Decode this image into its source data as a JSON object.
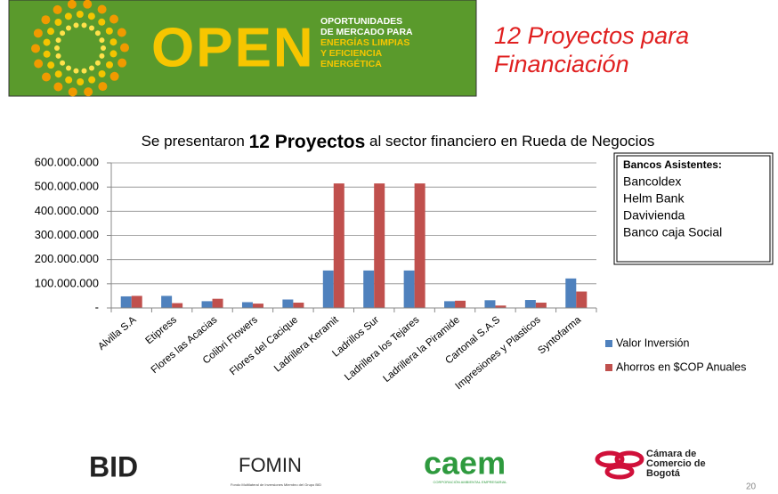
{
  "header": {
    "logo": "OPEN",
    "logo_lines": [
      "OPORTUNIDADES",
      "DE MERCADO PARA",
      "ENERGÍAS LIMPIAS",
      "Y EFICIENCIA",
      "ENERGÉTICA"
    ],
    "title_lines": [
      "12 Proyectos para",
      "Financiación"
    ],
    "subtitle_parts": [
      "Se presentaron ",
      "12 Proyectos",
      " al sector financiero en Rueda de Negocios"
    ]
  },
  "chart_data": {
    "type": "bar",
    "categories": [
      "Alvilla S.A",
      "Etipress",
      "Flores las Acacias",
      "Colibri Flowers",
      "Flores del Cacique",
      "Ladrillera Keramit",
      "Ladrillos Sur",
      "Ladrillera los Tejares",
      "Ladrillera la Piramide",
      "Cartonal S.A.S",
      "Impresiones y Plasticos",
      "Syntofarma"
    ],
    "series": [
      {
        "name": "Valor Inversión",
        "color": "#4f81bd",
        "values": [
          48000000,
          50000000,
          28000000,
          24000000,
          35000000,
          155000000,
          155000000,
          155000000,
          28000000,
          32000000,
          33000000,
          122000000
        ]
      },
      {
        "name": "Ahorros en $COP Anuales",
        "color": "#c0504d",
        "values": [
          50000000,
          20000000,
          38000000,
          18000000,
          22000000,
          515000000,
          515000000,
          515000000,
          30000000,
          10000000,
          22000000,
          68000000
        ]
      }
    ],
    "ylim": [
      0,
      600000000
    ],
    "yticks": [
      {
        "value": 0,
        "label": "-"
      },
      {
        "value": 100000000,
        "label": "100.000.000"
      },
      {
        "value": 200000000,
        "label": "200.000.000"
      },
      {
        "value": 300000000,
        "label": "300.000.000"
      },
      {
        "value": 400000000,
        "label": "400.000.000"
      },
      {
        "value": 500000000,
        "label": "500.000.000"
      },
      {
        "value": 600000000,
        "label": "600.000.000"
      }
    ],
    "grid": true,
    "legend": "right"
  },
  "box": {
    "title": "Bancos Asistentes:",
    "items": [
      "Bancoldex",
      "Helm Bank",
      "Davivienda",
      "Banco caja Social"
    ]
  },
  "footer": {
    "logos": [
      "BID",
      "FOMIN",
      "caem",
      "Cámara de Comercio de Bogotá"
    ],
    "fomin_note": "Fondo Multilateral de Inversiones Miembro del Grupo BID",
    "caem_note": "CORPORACIÓN AMBIENTAL EMPRESARIAL",
    "page": "20"
  }
}
